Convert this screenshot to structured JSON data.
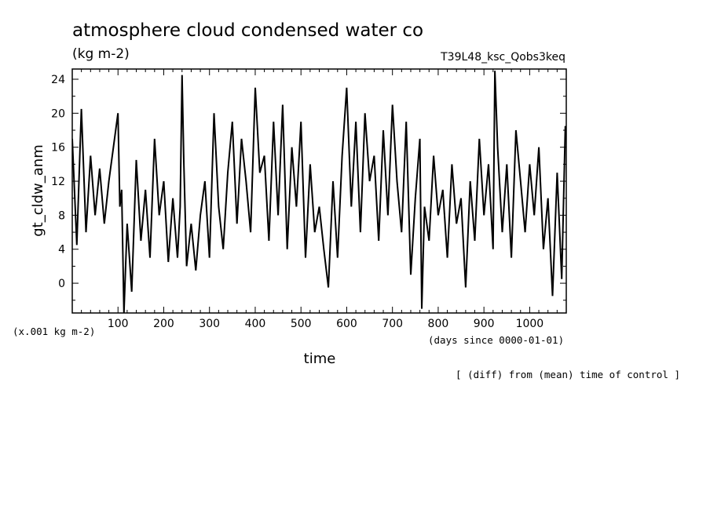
{
  "chart_data": {
    "type": "line",
    "title": "atmosphere cloud condensed water co",
    "units_label": "(kg m-2)",
    "run_label": "T39L48_ksc_Qobs3keq",
    "xlabel": "time",
    "x_units": "(days since 0000-01-01)",
    "ylabel": "gt_cldw_anm",
    "y_scale_note": "(x.001 kg m-2)",
    "footnote": "[ (diff) from (mean) time of control ]",
    "xlim": [
      0,
      1080
    ],
    "ylim": [
      -3.5,
      25.2
    ],
    "xticks": [
      100,
      200,
      300,
      400,
      500,
      600,
      700,
      800,
      900,
      1000
    ],
    "yticks": [
      0,
      4,
      8,
      12,
      16,
      20,
      24
    ],
    "grid": false,
    "series": [
      {
        "color": "#000000",
        "x": [
          0,
          10,
          20,
          30,
          40,
          50,
          60,
          70,
          80,
          90,
          100,
          104,
          108,
          113,
          120,
          130,
          140,
          150,
          160,
          170,
          180,
          190,
          200,
          210,
          220,
          230,
          236,
          240,
          244,
          250,
          260,
          270,
          280,
          290,
          300,
          310,
          320,
          330,
          340,
          350,
          360,
          370,
          380,
          390,
          400,
          410,
          420,
          430,
          440,
          450,
          460,
          470,
          480,
          490,
          500,
          510,
          520,
          530,
          540,
          550,
          560,
          570,
          580,
          590,
          600,
          610,
          620,
          630,
          640,
          650,
          660,
          670,
          680,
          690,
          700,
          710,
          720,
          730,
          740,
          750,
          760,
          764,
          770,
          780,
          790,
          800,
          810,
          820,
          830,
          840,
          850,
          860,
          870,
          880,
          890,
          900,
          910,
          920,
          924,
          930,
          940,
          950,
          960,
          970,
          980,
          990,
          1000,
          1010,
          1020,
          1030,
          1040,
          1050,
          1060,
          1070,
          1078
        ],
        "y": [
          17,
          4.5,
          20.5,
          6,
          15,
          8,
          13.5,
          7,
          12,
          16,
          20,
          9,
          11,
          -3.5,
          7,
          -1,
          14.5,
          5,
          11,
          3,
          17,
          8,
          12,
          2.5,
          10,
          3,
          9,
          24.5,
          14,
          2,
          7,
          1.5,
          8,
          12,
          3,
          20,
          9,
          4,
          13,
          19,
          7,
          17,
          12,
          6,
          23,
          13,
          15,
          5,
          19,
          8,
          21,
          4,
          16,
          9,
          19,
          3,
          14,
          6,
          9,
          4,
          -0.5,
          12,
          3,
          15,
          23,
          9,
          19,
          6,
          20,
          12,
          15,
          5,
          18,
          8,
          21,
          12,
          6,
          19,
          1,
          10,
          17,
          -3,
          9,
          5,
          15,
          8,
          11,
          3,
          14,
          7,
          10,
          -0.5,
          12,
          5,
          17,
          8,
          14,
          4,
          25,
          16,
          6,
          14,
          3,
          18,
          12,
          6,
          14,
          8,
          16,
          4,
          10,
          -1.5,
          13,
          0.5,
          18.5
        ]
      }
    ]
  }
}
